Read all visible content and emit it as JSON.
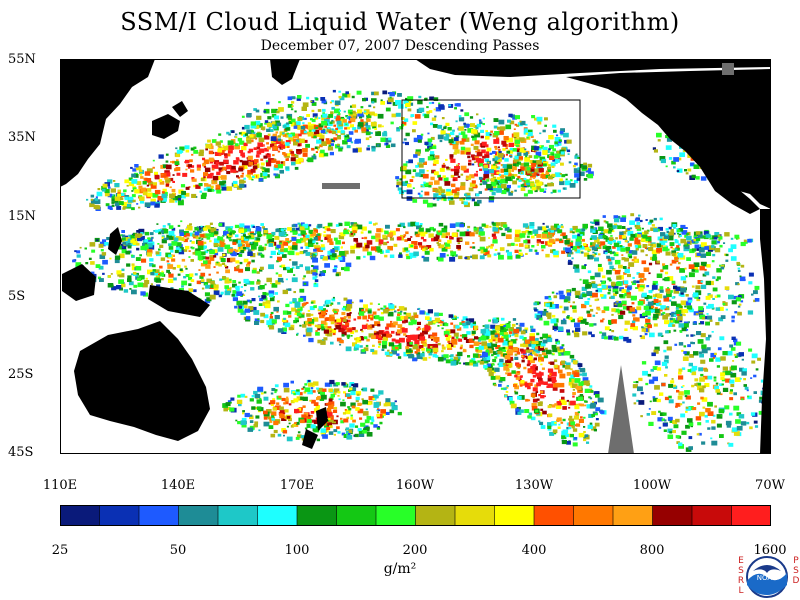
{
  "title": "SSM/I Cloud Liquid Water (Weng algorithm)",
  "subtitle": "December 07, 2007  Descending Passes",
  "lat_labels": [
    "55N",
    "35N",
    "15N",
    "5S",
    "25S",
    "45S"
  ],
  "lon_labels": [
    "110E",
    "140E",
    "170E",
    "160W",
    "130W",
    "100W",
    "70W"
  ],
  "colorbar": {
    "colors": [
      "#0a1a7a",
      "#0a30b4",
      "#1e5aff",
      "#1e8c96",
      "#1ec8c8",
      "#1effff",
      "#0a9614",
      "#14c814",
      "#28ff28",
      "#b4b414",
      "#e6dc0a",
      "#ffff00",
      "#ff5000",
      "#ff7800",
      "#ffa014",
      "#960000",
      "#c80a0a",
      "#ff1e1e"
    ],
    "labels": [
      "25",
      "50",
      "100",
      "200",
      "400",
      "800",
      "1600"
    ]
  },
  "units": "g/m²",
  "logo": {
    "center_text": "NOAA",
    "left_text": "ESRL",
    "right_text": "PSD"
  },
  "map_colors": {
    "land": "#000000",
    "ocean_clear": "#ffffff",
    "missing": "#6e6e6e",
    "box": "#000000"
  }
}
